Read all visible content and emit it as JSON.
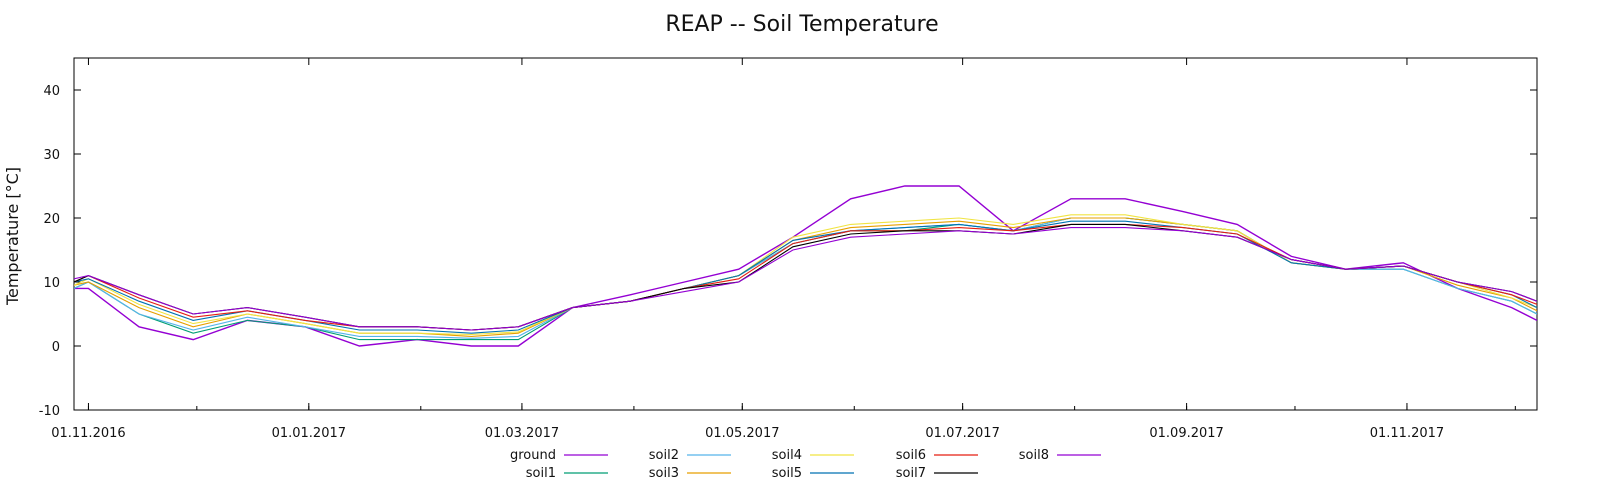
{
  "chart_data": {
    "type": "line",
    "title": "REAP -- Soil Temperature",
    "xlabel": "",
    "ylabel": "Temperature [°C]",
    "xlim": [
      "2016-10-28",
      "2017-12-07"
    ],
    "ylim": [
      -10,
      45
    ],
    "y_ticks": [
      -10,
      0,
      10,
      20,
      30,
      40
    ],
    "x_ticks": [
      "01.11.2016",
      "01.01.2017",
      "01.03.2017",
      "01.05.2017",
      "01.07.2017",
      "01.09.2017",
      "01.11.2017"
    ],
    "grid": false,
    "legend_position": "bottom",
    "x_dates": [
      "2016-10-28",
      "2016-11-01",
      "2016-11-15",
      "2016-11-30",
      "2016-12-15",
      "2016-12-31",
      "2017-01-15",
      "2017-01-31",
      "2017-02-15",
      "2017-02-28",
      "2017-03-15",
      "2017-03-31",
      "2017-04-15",
      "2017-04-30",
      "2017-05-15",
      "2017-05-31",
      "2017-06-15",
      "2017-06-30",
      "2017-07-15",
      "2017-07-31",
      "2017-08-15",
      "2017-08-31",
      "2017-09-15",
      "2017-09-30",
      "2017-10-15",
      "2017-10-31",
      "2017-11-15",
      "2017-11-30",
      "2017-12-07"
    ],
    "series": [
      {
        "name": "ground",
        "color": "#9400d3",
        "values": [
          9,
          9,
          3,
          1,
          4,
          3,
          0,
          1,
          0,
          0,
          6,
          8,
          10,
          12,
          17,
          23,
          25,
          25,
          18,
          23,
          23,
          21,
          19,
          14,
          12,
          13,
          9,
          6,
          4
        ]
      },
      {
        "name": "soil1",
        "color": "#009e73",
        "values": [
          9,
          10,
          5,
          2,
          4,
          3,
          1,
          1,
          1,
          1,
          6,
          7,
          9,
          11,
          16,
          18,
          18,
          19,
          18,
          20,
          20,
          19,
          18,
          13,
          12,
          12,
          9,
          7,
          5
        ]
      },
      {
        "name": "soil2",
        "color": "#56b4e9",
        "values": [
          9,
          10,
          5,
          2.5,
          4.5,
          3,
          1.5,
          1.5,
          1.2,
          1.5,
          6,
          7,
          9,
          11,
          16,
          18,
          18.5,
          19,
          18,
          20,
          20,
          19,
          18,
          13,
          12,
          12,
          9,
          7,
          5
        ]
      },
      {
        "name": "soil3",
        "color": "#e69f00",
        "values": [
          9.5,
          10,
          6,
          3,
          5,
          3.5,
          2,
          2,
          1.5,
          2,
          6,
          7,
          9,
          11,
          16.5,
          18.5,
          19,
          19.5,
          18.5,
          20,
          20,
          19,
          18,
          13,
          12,
          12.5,
          9.5,
          7.5,
          5.5
        ]
      },
      {
        "name": "soil4",
        "color": "#f0e442",
        "values": [
          9.5,
          10.5,
          6.5,
          3.5,
          5,
          3.5,
          2,
          2,
          1.8,
          2.2,
          6,
          7,
          9,
          11,
          17,
          19,
          19.5,
          20,
          19,
          20.5,
          20.5,
          19,
          18,
          13,
          12,
          12.5,
          10,
          7.5,
          6
        ]
      },
      {
        "name": "soil5",
        "color": "#0072b2",
        "values": [
          10,
          10.5,
          7,
          4,
          5.5,
          4,
          2.5,
          2.5,
          2,
          2.5,
          6,
          7,
          9,
          11,
          16.5,
          18,
          18.5,
          19,
          18,
          19.5,
          19.5,
          18.5,
          17.5,
          13,
          12,
          12.5,
          10,
          8,
          6
        ]
      },
      {
        "name": "soil6",
        "color": "#e51e10",
        "values": [
          10,
          11,
          7.5,
          4.5,
          5.5,
          4,
          3,
          3,
          2.5,
          3,
          6,
          7,
          9,
          10.5,
          16,
          18,
          18,
          18.5,
          18,
          19,
          19,
          18.5,
          17.5,
          13.5,
          12,
          12.5,
          10,
          8,
          6.5
        ]
      },
      {
        "name": "soil7",
        "color": "#000000",
        "values": [
          10,
          11,
          8,
          5,
          6,
          4.5,
          3,
          3,
          2.5,
          3,
          6,
          7,
          9,
          10,
          15.5,
          17.5,
          18,
          18,
          17.5,
          19,
          19,
          18,
          17,
          13.5,
          12,
          12.5,
          10,
          8.5,
          7
        ]
      },
      {
        "name": "soil8",
        "color": "#9400d3",
        "values": [
          10.5,
          11,
          8,
          5,
          6,
          4.5,
          3,
          3,
          2.5,
          3,
          6,
          7,
          8.5,
          10,
          15,
          17,
          17.5,
          18,
          17.5,
          18.5,
          18.5,
          18,
          17,
          13.5,
          12,
          12.5,
          10,
          8.5,
          7
        ]
      }
    ]
  }
}
